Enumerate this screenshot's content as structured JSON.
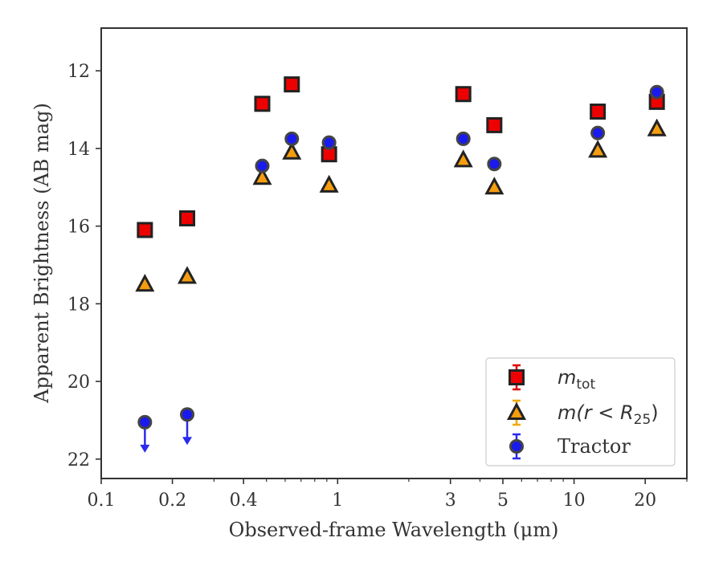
{
  "chart_data": {
    "type": "scatter",
    "xlabel": "Observed-frame Wavelength (μm)",
    "ylabel": "Apparent Brightness (AB mag)",
    "xscale": "log",
    "xlim": [
      0.1,
      30
    ],
    "ylim": [
      22.5,
      10.9
    ],
    "y_inverted": true,
    "xticks": [
      {
        "value": 0.1,
        "label": "0.1"
      },
      {
        "value": 0.2,
        "label": "0.2"
      },
      {
        "value": 0.4,
        "label": "0.4"
      },
      {
        "value": 1,
        "label": "1"
      },
      {
        "value": 3,
        "label": "3"
      },
      {
        "value": 5,
        "label": "5"
      },
      {
        "value": 10,
        "label": "10"
      },
      {
        "value": 20,
        "label": "20"
      }
    ],
    "yticks": [
      {
        "value": 12,
        "label": "12"
      },
      {
        "value": 14,
        "label": "14"
      },
      {
        "value": 16,
        "label": "16"
      },
      {
        "value": 18,
        "label": "18"
      },
      {
        "value": 20,
        "label": "20"
      },
      {
        "value": 22,
        "label": "22"
      }
    ],
    "legend_position": "bottom-right",
    "series": [
      {
        "key": "mtot",
        "legend_main": "m",
        "legend_sub": "tot",
        "marker": "square",
        "color": "#ee0000",
        "errcolor": "#dd0000",
        "edge": "#222222",
        "points": [
          {
            "x": 0.153,
            "y": 16.1
          },
          {
            "x": 0.231,
            "y": 15.8
          },
          {
            "x": 0.48,
            "y": 12.85
          },
          {
            "x": 0.64,
            "y": 12.35
          },
          {
            "x": 0.92,
            "y": 14.15
          },
          {
            "x": 3.4,
            "y": 12.6
          },
          {
            "x": 4.6,
            "y": 13.4
          },
          {
            "x": 12.6,
            "y": 13.05
          },
          {
            "x": 22.4,
            "y": 12.8
          }
        ]
      },
      {
        "key": "mr25",
        "legend_main": "m(r < R",
        "legend_sub": "25",
        "legend_tail": ")",
        "marker": "triangle",
        "color": "#f59d10",
        "errcolor": "#f0a800",
        "edge": "#222222",
        "points": [
          {
            "x": 0.153,
            "y": 17.5
          },
          {
            "x": 0.231,
            "y": 17.3
          },
          {
            "x": 0.48,
            "y": 14.75
          },
          {
            "x": 0.64,
            "y": 14.1
          },
          {
            "x": 0.92,
            "y": 14.95
          },
          {
            "x": 3.4,
            "y": 14.3
          },
          {
            "x": 4.6,
            "y": 15.0
          },
          {
            "x": 12.6,
            "y": 14.05
          },
          {
            "x": 22.4,
            "y": 13.5
          }
        ]
      },
      {
        "key": "tractor",
        "legend_main": "Tractor",
        "marker": "circle",
        "color": "#1a1aee",
        "errcolor": "#2a2aee",
        "edge": "#444444",
        "points": [
          {
            "x": 0.153,
            "y": 21.05,
            "upper_limit": true
          },
          {
            "x": 0.231,
            "y": 20.85,
            "upper_limit": true
          },
          {
            "x": 0.48,
            "y": 14.45
          },
          {
            "x": 0.64,
            "y": 13.75
          },
          {
            "x": 0.92,
            "y": 13.85
          },
          {
            "x": 3.4,
            "y": 13.75
          },
          {
            "x": 4.6,
            "y": 14.4
          },
          {
            "x": 12.6,
            "y": 13.6
          },
          {
            "x": 22.4,
            "y": 12.55
          }
        ]
      }
    ]
  }
}
